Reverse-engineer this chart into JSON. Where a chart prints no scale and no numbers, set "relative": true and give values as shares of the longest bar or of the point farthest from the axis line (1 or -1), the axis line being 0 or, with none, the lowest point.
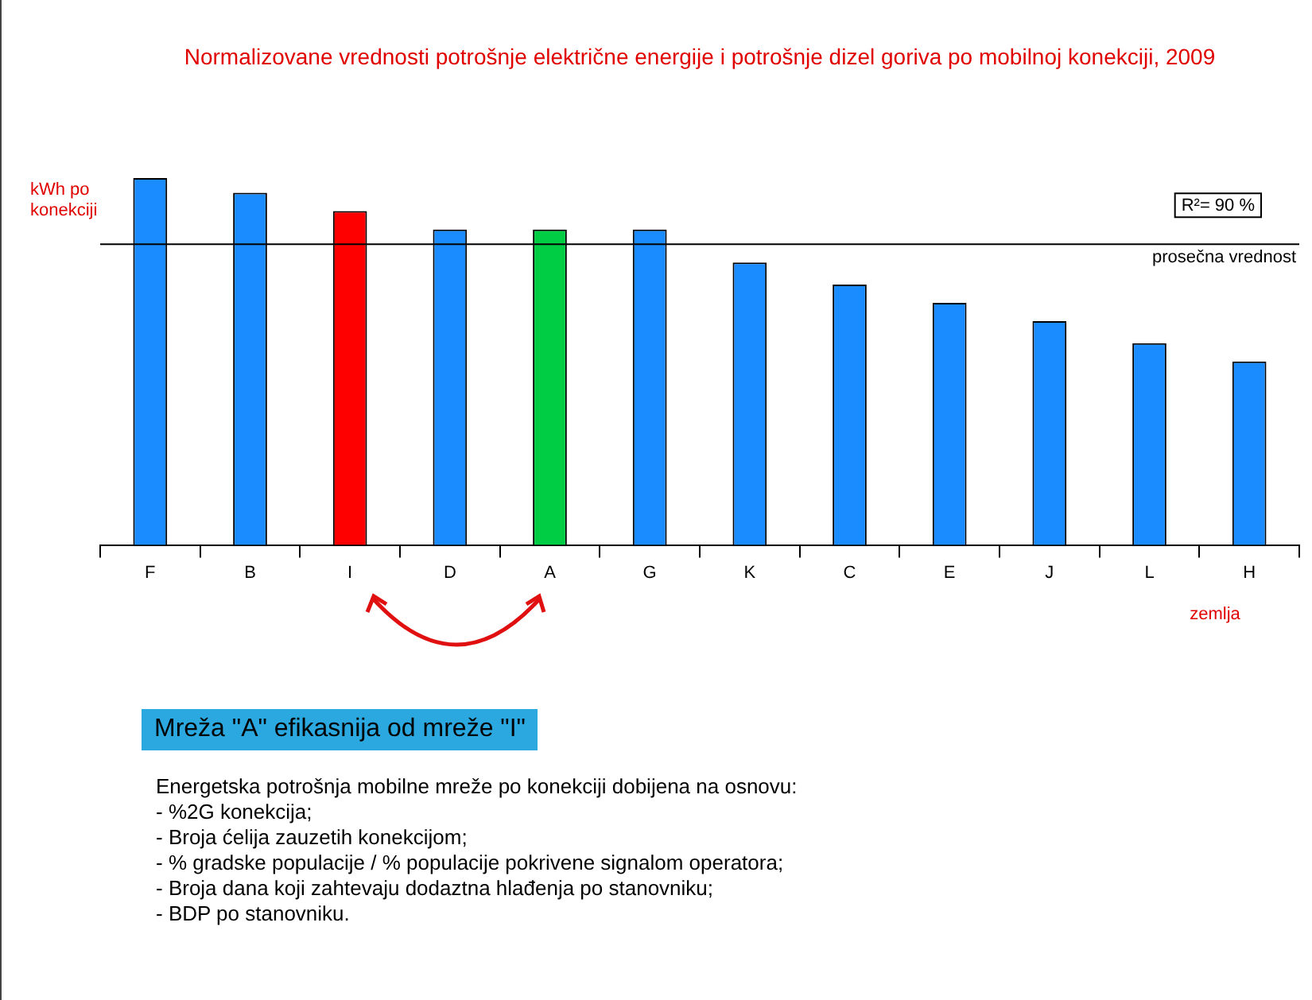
{
  "chart_data": {
    "type": "bar",
    "title": "Normalizovane vrednosti potrošnje električne energije i potrošnje dizel goriva po mobilnoj konekciji, 2009",
    "xlabel": "zemlja",
    "ylabel": "kWh po konekciji",
    "relative": true,
    "tick_labels": "x",
    "legend": false,
    "grid": false,
    "categories": [
      "F",
      "B",
      "I",
      "D",
      "A",
      "G",
      "K",
      "C",
      "E",
      "J",
      "L",
      "H"
    ],
    "values": [
      1,
      0.96,
      0.91,
      0.86,
      0.86,
      0.86,
      0.77,
      0.71,
      0.66,
      0.61,
      0.55,
      0.5
    ],
    "colors": [
      "#1a8cff",
      "#1a8cff",
      "#ff0000",
      "#1a8cff",
      "#00cc44",
      "#1a8cff",
      "#1a8cff",
      "#1a8cff",
      "#1a8cff",
      "#1a8cff",
      "#1a8cff",
      "#1a8cff"
    ],
    "ref_lines": [
      {
        "axis": "y",
        "value": 0.82,
        "label": "prosečna vrednost",
        "color": "#000000"
      }
    ],
    "annotations": [
      "R²= 90 %",
      "Mreža \"A\" efikasnija od mreže \"I\"",
      "Energetska potrošnja mobilne mreže po konekciji dobijena na osnovu:",
      "- %2G konekcija;",
      "- Broja ćelija zauzetih konekcijom;",
      "- % gradske populacije / % populacije pokrivene signalom operatora;",
      "- Broja dana koji zahtevaju dodaztna hlađenja po stanovniku;",
      "- BDP po stanovniku."
    ]
  }
}
